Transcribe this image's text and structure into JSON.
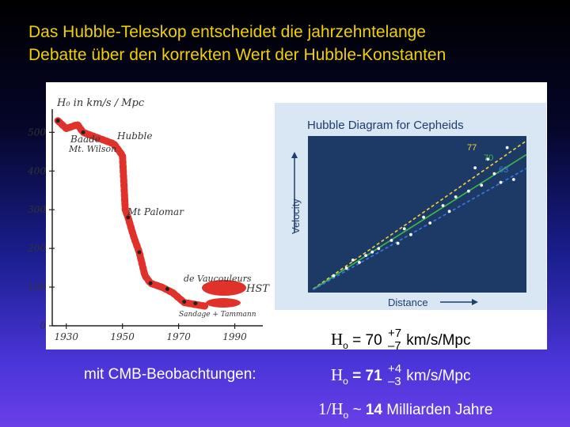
{
  "title": {
    "line1": "Das Hubble-Teleskop entscheidet die jahrzehntelange",
    "line2": "Debatte über den korrekten Wert der Hubble-Konstanten"
  },
  "left_plot": {
    "ylabel": "H₀ in km/s / Mpc",
    "y_ticks": [
      "500",
      "400",
      "300",
      "200",
      "100",
      "0"
    ],
    "x_ticks": [
      "1930",
      "1950",
      "1970",
      "1990"
    ],
    "annotations": [
      "Baade",
      "Hubble",
      "Mt. Wilson",
      "Mt Palomar",
      "de Vaucouleurs",
      "HST",
      "Sandage + Tammann"
    ],
    "line_color": "#e0322a"
  },
  "chart_data": {
    "type": "scatter",
    "title": "Hubble Diagram for Cepheids",
    "xlabel": "Distance",
    "ylabel": "Velocity",
    "fit_lines": [
      {
        "label": "77",
        "color": "#f2d23a",
        "slope": 77
      },
      {
        "label": "70",
        "color": "#3fb84a",
        "slope": 70
      },
      {
        "label": "63",
        "color": "#3a78e8",
        "slope": 63
      }
    ],
    "points": [
      {
        "x": 4,
        "y": 290
      },
      {
        "x": 6,
        "y": 420
      },
      {
        "x": 7,
        "y": 560
      },
      {
        "x": 8,
        "y": 520
      },
      {
        "x": 9,
        "y": 640
      },
      {
        "x": 10,
        "y": 700
      },
      {
        "x": 11,
        "y": 760
      },
      {
        "x": 13,
        "y": 900
      },
      {
        "x": 14,
        "y": 850
      },
      {
        "x": 15,
        "y": 1100
      },
      {
        "x": 16,
        "y": 1000
      },
      {
        "x": 18,
        "y": 1300
      },
      {
        "x": 19,
        "y": 1200
      },
      {
        "x": 21,
        "y": 1500
      },
      {
        "x": 22,
        "y": 1400
      },
      {
        "x": 23,
        "y": 1650
      },
      {
        "x": 25,
        "y": 1750
      },
      {
        "x": 26,
        "y": 2150
      },
      {
        "x": 27,
        "y": 1850
      },
      {
        "x": 28,
        "y": 2300
      },
      {
        "x": 29,
        "y": 2050
      },
      {
        "x": 30,
        "y": 1900
      },
      {
        "x": 31,
        "y": 2500
      },
      {
        "x": 32,
        "y": 1950
      }
    ],
    "colors": {
      "background": "#1d3a66",
      "points": "#ffffff",
      "axis": "#e0e8ff"
    }
  },
  "formulas": {
    "measured": {
      "symbol": "H",
      "sub": "o",
      "value": "= 70",
      "plus": "+7",
      "minus": "–7",
      "unit": "km/s/Mpc"
    },
    "cmb_label": "mit CMB-Beobachtungen:",
    "cmb": {
      "symbol": "H",
      "sub": "o",
      "value": "= 71",
      "plus": "+4",
      "minus": "–3",
      "unit": "km/s/Mpc"
    },
    "age": {
      "prefix": "1/H",
      "sub": "o",
      "approx": "~",
      "value": "14",
      "unit": "Milliarden Jahre"
    }
  }
}
